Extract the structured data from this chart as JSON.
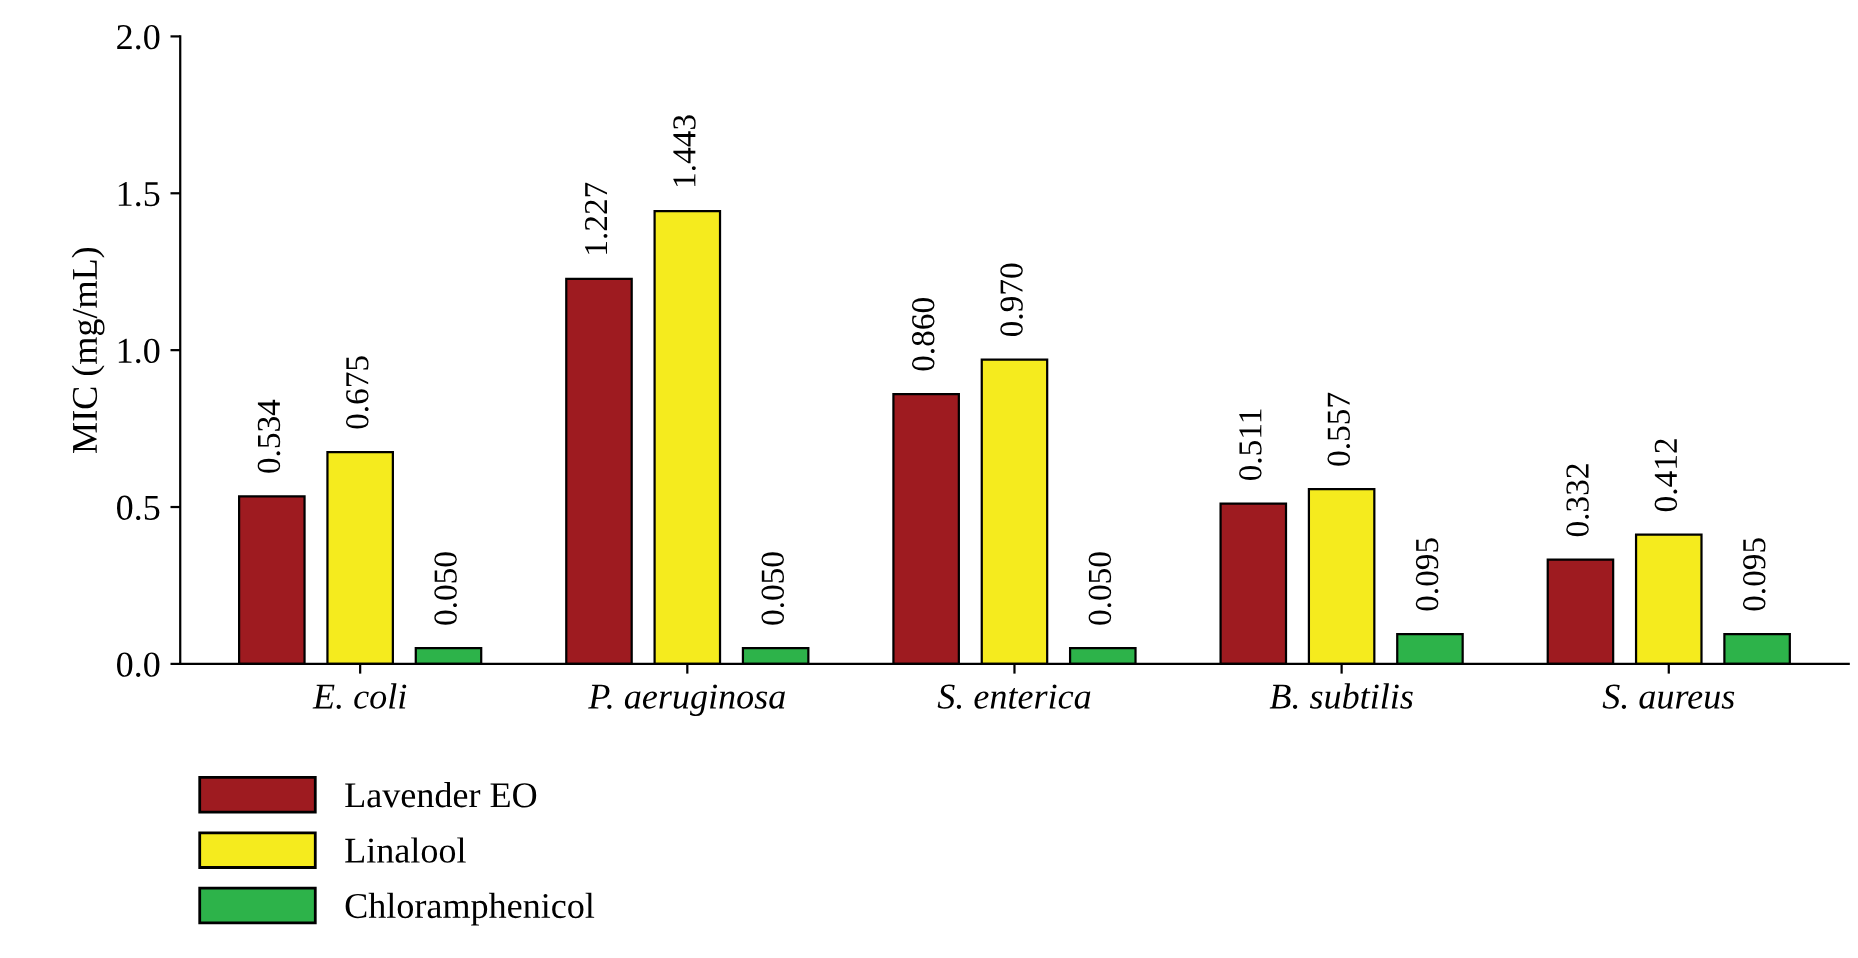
{
  "chart_data": {
    "type": "bar",
    "ylabel": "MIC (mg/mL)",
    "categories": [
      "E. coli",
      "P. aeruginosa",
      "S. enterica",
      "B. subtilis",
      "S. aureus"
    ],
    "series": [
      {
        "name": "Lavender EO",
        "color": "#9e1b20",
        "values": [
          0.534,
          1.227,
          0.86,
          0.511,
          0.332
        ],
        "value_labels": [
          "0.534",
          "1.227",
          "0.860",
          "0.511",
          "0.332"
        ]
      },
      {
        "name": "Linalool",
        "color": "#f5eb1e",
        "values": [
          0.675,
          1.443,
          0.97,
          0.557,
          0.412
        ],
        "value_labels": [
          "0.675",
          "1.443",
          "0.970",
          "0.557",
          "0.412"
        ]
      },
      {
        "name": "Chloramphenicol",
        "color": "#2db34a",
        "values": [
          0.05,
          0.05,
          0.05,
          0.095,
          0.095
        ],
        "value_labels": [
          "0.050",
          "0.050",
          "0.050",
          "0.095",
          "0.095"
        ]
      }
    ],
    "ylim": [
      0,
      2.0
    ],
    "yticks": [
      {
        "value": 0,
        "label": "0.0"
      },
      {
        "value": 0.5,
        "label": "0.5"
      },
      {
        "value": 1.0,
        "label": "1.0"
      },
      {
        "value": 1.5,
        "label": "1.5"
      },
      {
        "value": 2.0,
        "label": "2.0"
      }
    ],
    "grid": false,
    "legend": "bottom left"
  }
}
